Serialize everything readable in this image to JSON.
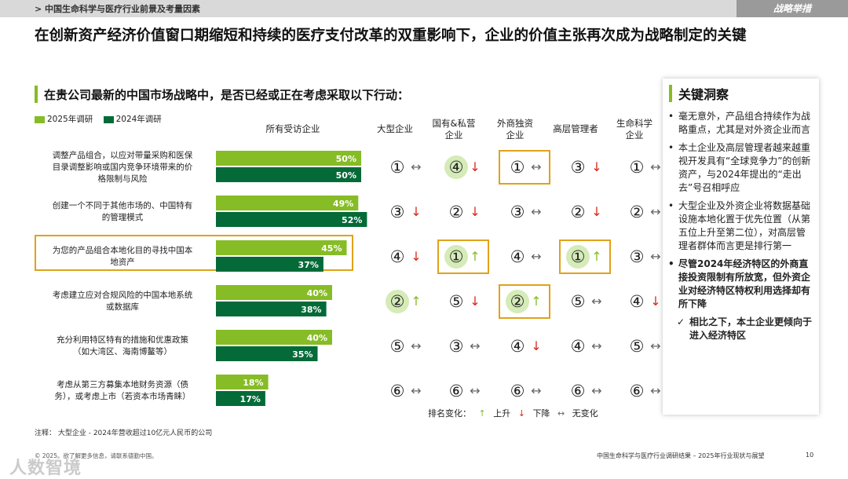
{
  "header": {
    "section": "> 中国生命科学与医疗行业前景及考量因素",
    "tag": "战略举措"
  },
  "title": "在创新资产经济价值窗口期缩短和持续的医疗支付改革的双重影响下，企业的价值主张再次成为战略制定的关键",
  "question": "在贵公司最新的中国市场战略中，是否已经或正在考虑采取以下行动：",
  "legend": [
    {
      "label": "2025年调研",
      "color": "#86bc25"
    },
    {
      "label": "2024年调研",
      "color": "#046a38"
    }
  ],
  "columns": {
    "all": "所有受访企业",
    "groups": [
      {
        "lines": [
          "大型企业"
        ]
      },
      {
        "lines": [
          "国有&私营",
          "企业"
        ]
      },
      {
        "lines": [
          "外商独资",
          "企业"
        ]
      },
      {
        "lines": [
          "高层管理者"
        ]
      },
      {
        "lines": [
          "生命科学",
          "企业"
        ]
      }
    ]
  },
  "chart_data": {
    "type": "bar",
    "orientation": "horizontal",
    "categories": [
      "调整产品组合，以应对带量采购和医保目录调整影响或国内竞争环境带来的价格限制与风险",
      "创建一个不同于其他市场的、中国特有的管理模式",
      "为您的产品组合本地化目的寻找中国本地资产",
      "考虑建立应对合规风险的中国本地系统或数据库",
      "充分利用特区特有的措施和优惠政策（如大湾区、海南博鳌等）",
      "考虑从第三方募集本地财务资源（债务），或考虑上市（若资本市场青睐）"
    ],
    "series": [
      {
        "name": "2025年调研",
        "values": [
          50,
          49,
          45,
          40,
          40,
          18
        ]
      },
      {
        "name": "2024年调研",
        "values": [
          50,
          52,
          37,
          38,
          35,
          17
        ]
      }
    ],
    "unit": "%",
    "xlim": [
      0,
      100
    ]
  },
  "label_lines": [
    [
      "调整产品组合，以应对带量采购和医保",
      "目录调整影响或国内竞争环境带来的价",
      "格限制与风险"
    ],
    [
      "创建一个不同于其他市场的、中国特有",
      "的管理模式"
    ],
    [
      "为您的产品组合本地化目的寻找中国本",
      "地资产"
    ],
    [
      "考虑建立应对合规风险的中国本地系统",
      "或数据库"
    ],
    [
      "充分利用特区特有的措施和优惠政策",
      "（如大湾区、海南博鳌等）"
    ],
    [
      "考虑从第三方募集本地财务资源（债",
      "务），或考虑上市（若资本市场青睐）"
    ]
  ],
  "ranks": [
    [
      {
        "r": "①",
        "c": "flat"
      },
      {
        "r": "④",
        "c": "down",
        "hl": true
      },
      {
        "r": "①",
        "c": "flat",
        "box": true
      },
      {
        "r": "③",
        "c": "down"
      },
      {
        "r": "①",
        "c": "flat"
      }
    ],
    [
      {
        "r": "③",
        "c": "down"
      },
      {
        "r": "②",
        "c": "down"
      },
      {
        "r": "③",
        "c": "flat"
      },
      {
        "r": "②",
        "c": "down"
      },
      {
        "r": "②",
        "c": "flat"
      }
    ],
    [
      {
        "r": "④",
        "c": "down"
      },
      {
        "r": "①",
        "c": "up",
        "hl": true,
        "box": true
      },
      {
        "r": "④",
        "c": "flat"
      },
      {
        "r": "①",
        "c": "up",
        "hl": true,
        "box": true
      },
      {
        "r": "③",
        "c": "flat"
      }
    ],
    [
      {
        "r": "②",
        "c": "up",
        "hl": true
      },
      {
        "r": "⑤",
        "c": "down"
      },
      {
        "r": "②",
        "c": "up",
        "hl": true,
        "box": true
      },
      {
        "r": "⑤",
        "c": "flat"
      },
      {
        "r": "④",
        "c": "down"
      }
    ],
    [
      {
        "r": "⑤",
        "c": "flat"
      },
      {
        "r": "③",
        "c": "flat"
      },
      {
        "r": "④",
        "c": "down"
      },
      {
        "r": "④",
        "c": "flat"
      },
      {
        "r": "⑤",
        "c": "flat"
      }
    ],
    [
      {
        "r": "⑥",
        "c": "flat"
      },
      {
        "r": "⑥",
        "c": "flat"
      },
      {
        "r": "⑥",
        "c": "flat"
      },
      {
        "r": "⑥",
        "c": "flat"
      },
      {
        "r": "⑥",
        "c": "flat"
      }
    ]
  ],
  "arrows": {
    "up": "↑",
    "down": "↓",
    "flat": "↔"
  },
  "rank_legend": {
    "label": "排名变化：",
    "up": "上升",
    "down": "下降",
    "flat": "无变化"
  },
  "insights": {
    "title": "关键洞察",
    "items": [
      {
        "text": "毫无意外，产品组合持续作为战略重点，尤其是对外资企业而言",
        "bold": false
      },
      {
        "text": "本土企业及高层管理者越来越重视开发具有“全球竞争力”的创新资产，与2024年提出的“走出去”号召相呼应",
        "bold": false
      },
      {
        "text": "大型企业及外资企业将数据基础设施本地化置于优先位置（从第五位上升至第二位），对高层管理者群体而言更是排行第一",
        "bold": false
      },
      {
        "text": "尽管2024年经济特区的外商直接投资限制有所放宽，但外资企业对经济特区特权利用选择却有所下降",
        "bold": true
      }
    ],
    "sub": "相比之下，本土企业更倾向于进入经济特区"
  },
  "note": "注释：  大型企业 - 2024年营收超过10亿元人民币的公司",
  "footer": {
    "left": "© 2025。欲了解更多信息，请联系德勤中国。",
    "right": "中国生命科学与医疗行业调研结果 – 2025年行业现状与展望",
    "page": "10"
  },
  "watermark": "人数智境"
}
